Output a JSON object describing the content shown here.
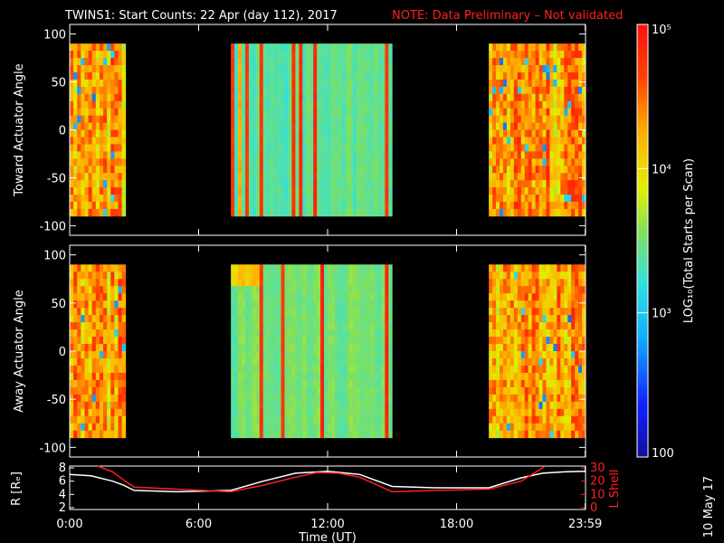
{
  "title": {
    "main": "TWINS1: Start Counts: 22 Apr (day 112), 2017",
    "note": "NOTE: Data Preliminary – Not validated",
    "note_color": "#ff2020"
  },
  "date_stamp": "10 May 17",
  "chart_data": [
    {
      "type": "heatmap",
      "panel": "toward",
      "ylabel": "Toward Actuator Angle",
      "ylim": [
        -110,
        110
      ],
      "yticks": [
        "-100",
        "-50",
        "0",
        "50",
        "100"
      ],
      "xlim": [
        0,
        24
      ],
      "angle_range": [
        -90,
        90
      ],
      "data_intervals_hours": [
        [
          0,
          2.6
        ],
        [
          7.5,
          15.0
        ],
        [
          19.5,
          24
        ]
      ],
      "typical_log10_counts": [
        4.3,
        3.4,
        4.3
      ]
    },
    {
      "type": "heatmap",
      "panel": "away",
      "ylabel": "Away Actuator Angle",
      "ylim": [
        -110,
        110
      ],
      "yticks": [
        "-100",
        "-50",
        "0",
        "50",
        "100"
      ],
      "xlim": [
        0,
        24
      ],
      "angle_range": [
        -90,
        90
      ],
      "data_intervals_hours": [
        [
          0,
          2.6
        ],
        [
          7.5,
          15.0
        ],
        [
          19.5,
          24
        ]
      ],
      "typical_log10_counts": [
        4.3,
        3.5,
        4.3
      ]
    },
    {
      "type": "line",
      "panel": "orbit",
      "ylabel": "R [Rₑ]",
      "y2label": "L Shell",
      "xlabel": "Time (UT)",
      "xlim": [
        0,
        24
      ],
      "xticks": [
        "0:00",
        "6:00",
        "12:00",
        "18:00",
        "23:59"
      ],
      "xtick_hours": [
        0,
        6,
        12,
        18,
        23.983
      ],
      "ylim": [
        2,
        8
      ],
      "yticks": [
        "2",
        "4",
        "6",
        "8"
      ],
      "y2lim": [
        0,
        30
      ],
      "y2ticks": [
        "0",
        "10",
        "20",
        "30"
      ],
      "series": [
        {
          "color": "#ffffff",
          "axis": "left",
          "x": [
            0,
            1,
            2,
            2.5,
            3,
            5,
            7.5,
            9,
            10.5,
            12,
            13.5,
            15,
            17,
            19.5,
            21,
            22,
            23,
            24
          ],
          "y": [
            7.0,
            6.8,
            6.0,
            5.4,
            4.6,
            4.4,
            4.6,
            6.0,
            7.2,
            7.5,
            7.0,
            5.2,
            5.0,
            5.0,
            6.5,
            7.2,
            7.4,
            7.5
          ]
        },
        {
          "color": "#ff2020",
          "axis": "right",
          "x": [
            1.3,
            2,
            2.5,
            3,
            5,
            7.5,
            9,
            10.5,
            11.5,
            12.5,
            13.5,
            15,
            17,
            19.5,
            21,
            22.1
          ],
          "y": [
            32,
            27,
            21,
            15.5,
            14,
            12,
            17,
            23,
            26.5,
            26,
            23,
            12,
            13,
            14,
            20,
            31
          ]
        }
      ]
    }
  ],
  "colorbar": {
    "label": "LOG₁₀(Total Starts per Scan)",
    "min": 100,
    "max": 100000,
    "tick_labels": [
      "100",
      "10³",
      "10⁴",
      "10⁵"
    ],
    "tick_values_log10": [
      2,
      3,
      4,
      5
    ]
  }
}
